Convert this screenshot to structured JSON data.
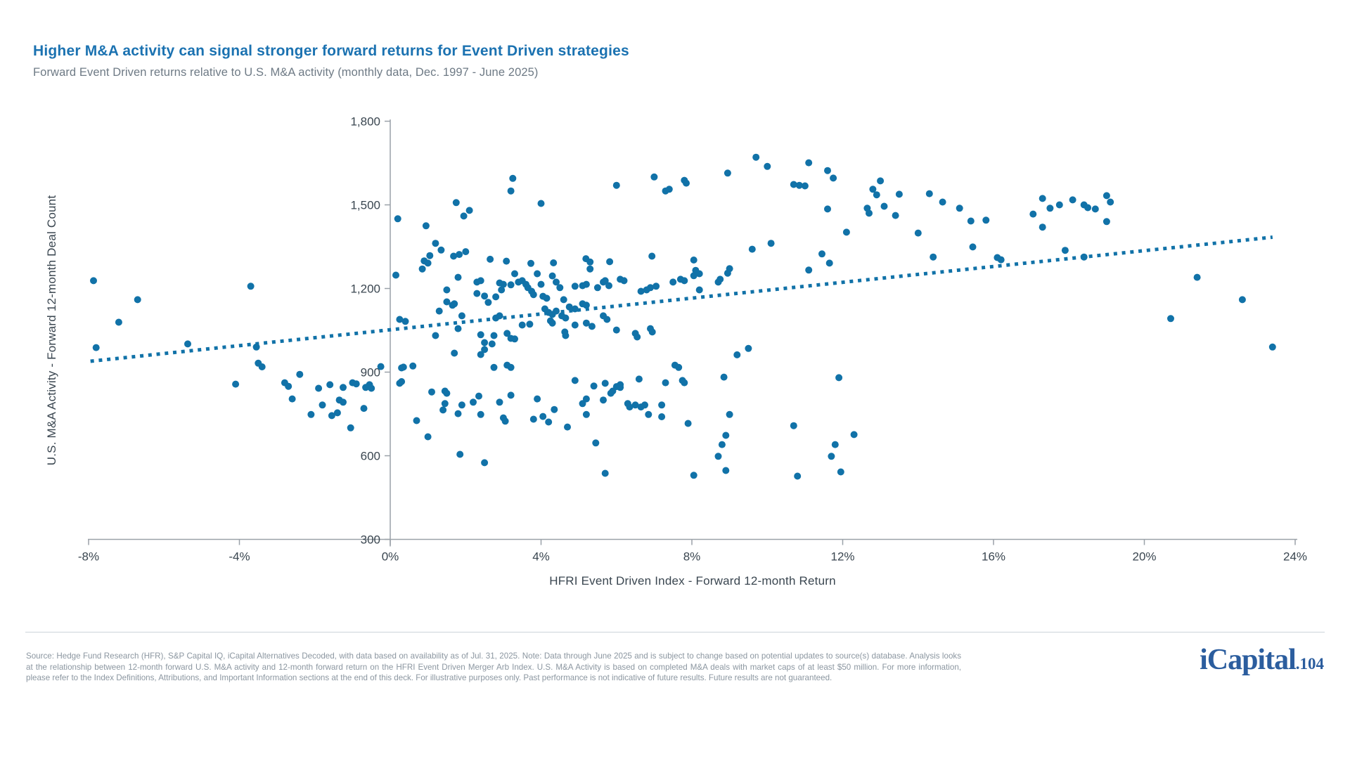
{
  "page": {
    "title": "Higher M&A activity can signal stronger forward returns for Event Driven strategies",
    "subtitle": "Forward Event Driven returns relative to U.S. M&A activity (monthly data, Dec. 1997 - June 2025)"
  },
  "chart": {
    "colors": {
      "point": "#1172a8",
      "trend": "#1172a8",
      "axis_line": "#9aa1a8",
      "tick_text": "#3a4650"
    }
  },
  "chart_data": {
    "type": "scatter",
    "title": "Forward Event Driven returns relative to U.S. M&A activity (monthly data, Dec. 1997 - June 2025)",
    "xlabel": "HFRI Event Driven Index - Forward 12-month Return",
    "ylabel": "U.S. M&A Activity - Forward 12-month Deal Count",
    "xlim": [
      -8,
      24
    ],
    "ylim": [
      300,
      1800
    ],
    "x_ticks": [
      -8,
      -4,
      0,
      4,
      8,
      12,
      16,
      20,
      24
    ],
    "y_ticks": [
      300,
      600,
      900,
      1200,
      1500,
      1800
    ],
    "x_tick_suffix": "%",
    "grid": false,
    "legend": null,
    "trendline": {
      "style": "dotted",
      "x1": -7.95,
      "y1": 939,
      "x2": 23.4,
      "y2": 1384
    },
    "points": [
      [
        -7.87,
        1228
      ],
      [
        -7.8,
        988
      ],
      [
        -7.2,
        1079
      ],
      [
        -6.7,
        1160
      ],
      [
        -5.37,
        1001
      ],
      [
        -4.1,
        857
      ],
      [
        -3.7,
        1208
      ],
      [
        -3.55,
        990
      ],
      [
        -3.5,
        932
      ],
      [
        -3.4,
        919
      ],
      [
        -2.8,
        862
      ],
      [
        -2.7,
        849
      ],
      [
        -2.6,
        804
      ],
      [
        -2.4,
        892
      ],
      [
        -2.1,
        748
      ],
      [
        -1.9,
        842
      ],
      [
        -1.8,
        782
      ],
      [
        -1.6,
        855
      ],
      [
        -1.55,
        744
      ],
      [
        -1.4,
        754
      ],
      [
        -1.35,
        800
      ],
      [
        -1.25,
        845
      ],
      [
        -1.25,
        792
      ],
      [
        -1.05,
        700
      ],
      [
        -1.0,
        862
      ],
      [
        -0.9,
        858
      ],
      [
        -0.7,
        770
      ],
      [
        -0.65,
        845
      ],
      [
        -0.55,
        855
      ],
      [
        -0.5,
        842
      ],
      [
        -0.25,
        920
      ],
      [
        0.15,
        1248
      ],
      [
        0.2,
        1450
      ],
      [
        0.25,
        1089
      ],
      [
        0.25,
        860
      ],
      [
        0.3,
        915
      ],
      [
        0.3,
        866
      ],
      [
        0.35,
        918
      ],
      [
        0.4,
        1082
      ],
      [
        0.6,
        922
      ],
      [
        0.7,
        726
      ],
      [
        0.85,
        1270
      ],
      [
        0.9,
        1299
      ],
      [
        0.95,
        1425
      ],
      [
        1.0,
        1291
      ],
      [
        1.0,
        668
      ],
      [
        1.05,
        1318
      ],
      [
        1.1,
        829
      ],
      [
        1.2,
        1031
      ],
      [
        1.2,
        1362
      ],
      [
        1.3,
        1119
      ],
      [
        1.35,
        1338
      ],
      [
        1.4,
        764
      ],
      [
        1.45,
        832
      ],
      [
        1.45,
        787
      ],
      [
        1.5,
        1195
      ],
      [
        1.5,
        1152
      ],
      [
        1.5,
        824
      ],
      [
        1.65,
        1140
      ],
      [
        1.68,
        1316
      ],
      [
        1.7,
        1145
      ],
      [
        1.7,
        968
      ],
      [
        1.75,
        1508
      ],
      [
        1.8,
        1240
      ],
      [
        1.8,
        1056
      ],
      [
        1.8,
        751
      ],
      [
        1.83,
        1322
      ],
      [
        1.85,
        605
      ],
      [
        1.9,
        1102
      ],
      [
        1.9,
        782
      ],
      [
        1.95,
        1460
      ],
      [
        2.0,
        1332
      ],
      [
        2.1,
        1480
      ],
      [
        2.2,
        792
      ],
      [
        2.3,
        1223
      ],
      [
        2.3,
        1182
      ],
      [
        2.35,
        814
      ],
      [
        2.4,
        1228
      ],
      [
        2.4,
        963
      ],
      [
        2.4,
        1034
      ],
      [
        2.4,
        748
      ],
      [
        2.5,
        1173
      ],
      [
        2.5,
        981
      ],
      [
        2.5,
        1006
      ],
      [
        2.5,
        575
      ],
      [
        2.6,
        1150
      ],
      [
        2.65,
        1305
      ],
      [
        2.7,
        1001
      ],
      [
        2.75,
        1031
      ],
      [
        2.75,
        917
      ],
      [
        2.8,
        1170
      ],
      [
        2.8,
        1094
      ],
      [
        2.9,
        1220
      ],
      [
        2.9,
        1102
      ],
      [
        2.9,
        792
      ],
      [
        2.95,
        1195
      ],
      [
        3.0,
        1215
      ],
      [
        3.0,
        736
      ],
      [
        3.05,
        724
      ],
      [
        3.08,
        1298
      ],
      [
        3.1,
        1039
      ],
      [
        3.1,
        925
      ],
      [
        3.2,
        1213
      ],
      [
        3.2,
        1021
      ],
      [
        3.2,
        917
      ],
      [
        3.2,
        817
      ],
      [
        3.2,
        1550
      ],
      [
        3.25,
        1595
      ],
      [
        3.3,
        1253
      ],
      [
        3.3,
        1019
      ],
      [
        3.4,
        1223
      ],
      [
        3.5,
        1228
      ],
      [
        3.5,
        1069
      ],
      [
        3.6,
        1215
      ],
      [
        3.65,
        1203
      ],
      [
        3.7,
        1072
      ],
      [
        3.73,
        1290
      ],
      [
        3.75,
        1190
      ],
      [
        3.8,
        1178
      ],
      [
        3.8,
        731
      ],
      [
        3.9,
        1253
      ],
      [
        3.9,
        804
      ],
      [
        4.0,
        1505
      ],
      [
        4.0,
        1215
      ],
      [
        4.05,
        741
      ],
      [
        4.05,
        1172
      ],
      [
        4.1,
        1127
      ],
      [
        4.15,
        1165
      ],
      [
        4.2,
        1114
      ],
      [
        4.2,
        721
      ],
      [
        4.25,
        1084
      ],
      [
        4.3,
        1245
      ],
      [
        4.3,
        1107
      ],
      [
        4.3,
        1076
      ],
      [
        4.33,
        1292
      ],
      [
        4.35,
        766
      ],
      [
        4.4,
        1223
      ],
      [
        4.4,
        1119
      ],
      [
        4.5,
        1203
      ],
      [
        4.55,
        1102
      ],
      [
        4.6,
        1160
      ],
      [
        4.63,
        1044
      ],
      [
        4.65,
        1094
      ],
      [
        4.65,
        1031
      ],
      [
        4.7,
        703
      ],
      [
        4.75,
        1134
      ],
      [
        4.9,
        1208
      ],
      [
        4.9,
        1127
      ],
      [
        4.9,
        1069
      ],
      [
        4.9,
        870
      ],
      [
        5.1,
        1210
      ],
      [
        5.1,
        1145
      ],
      [
        5.1,
        787
      ],
      [
        5.19,
        1307
      ],
      [
        5.2,
        1215
      ],
      [
        5.2,
        1140
      ],
      [
        5.2,
        1076
      ],
      [
        5.2,
        804
      ],
      [
        5.2,
        748
      ],
      [
        5.3,
        1270
      ],
      [
        5.3,
        1295
      ],
      [
        5.35,
        1064
      ],
      [
        5.4,
        850
      ],
      [
        5.45,
        646
      ],
      [
        5.5,
        1203
      ],
      [
        5.65,
        1223
      ],
      [
        5.65,
        1102
      ],
      [
        5.65,
        800
      ],
      [
        5.7,
        1228
      ],
      [
        5.7,
        860
      ],
      [
        5.7,
        537
      ],
      [
        5.75,
        1089
      ],
      [
        5.8,
        1210
      ],
      [
        5.82,
        1296
      ],
      [
        5.85,
        824
      ],
      [
        5.9,
        832
      ],
      [
        6.0,
        1570
      ],
      [
        6.0,
        1051
      ],
      [
        6.0,
        848
      ],
      [
        6.1,
        1233
      ],
      [
        6.1,
        855
      ],
      [
        6.1,
        845
      ],
      [
        6.2,
        1228
      ],
      [
        6.3,
        787
      ],
      [
        6.35,
        775
      ],
      [
        6.5,
        1039
      ],
      [
        6.5,
        782
      ],
      [
        6.55,
        1026
      ],
      [
        6.6,
        875
      ],
      [
        6.65,
        775
      ],
      [
        6.65,
        1190
      ],
      [
        6.75,
        782
      ],
      [
        6.8,
        1195
      ],
      [
        6.85,
        748
      ],
      [
        6.9,
        1203
      ],
      [
        6.9,
        1056
      ],
      [
        6.94,
        1316
      ],
      [
        6.95,
        1044
      ],
      [
        7.0,
        1600
      ],
      [
        7.05,
        1208
      ],
      [
        7.2,
        782
      ],
      [
        7.2,
        740
      ],
      [
        7.3,
        1550
      ],
      [
        7.3,
        862
      ],
      [
        7.4,
        1556
      ],
      [
        7.5,
        1223
      ],
      [
        7.55,
        925
      ],
      [
        7.65,
        917
      ],
      [
        7.7,
        1233
      ],
      [
        7.75,
        870
      ],
      [
        7.8,
        1588
      ],
      [
        7.8,
        1228
      ],
      [
        7.8,
        862
      ],
      [
        7.85,
        1578
      ],
      [
        7.9,
        716
      ],
      [
        8.05,
        1246
      ],
      [
        8.05,
        530
      ],
      [
        8.05,
        1302
      ],
      [
        8.1,
        1265
      ],
      [
        8.2,
        1253
      ],
      [
        8.2,
        1195
      ],
      [
        8.7,
        1223
      ],
      [
        8.7,
        598
      ],
      [
        8.75,
        1233
      ],
      [
        8.8,
        640
      ],
      [
        8.85,
        882
      ],
      [
        8.9,
        673
      ],
      [
        8.9,
        547
      ],
      [
        8.95,
        1614
      ],
      [
        8.95,
        1255
      ],
      [
        9.0,
        1271
      ],
      [
        9.0,
        748
      ],
      [
        9.2,
        962
      ],
      [
        9.5,
        985
      ],
      [
        9.6,
        1341
      ],
      [
        9.7,
        1671
      ],
      [
        10.0,
        1638
      ],
      [
        10.1,
        1362
      ],
      [
        10.7,
        1573
      ],
      [
        10.7,
        708
      ],
      [
        10.8,
        527
      ],
      [
        10.85,
        1570
      ],
      [
        11.0,
        1568
      ],
      [
        11.1,
        1651
      ],
      [
        11.1,
        1266
      ],
      [
        11.45,
        1324
      ],
      [
        11.6,
        1623
      ],
      [
        11.6,
        1485
      ],
      [
        11.65,
        1291
      ],
      [
        11.7,
        598
      ],
      [
        11.75,
        1596
      ],
      [
        11.8,
        640
      ],
      [
        11.9,
        880
      ],
      [
        11.95,
        542
      ],
      [
        12.1,
        1402
      ],
      [
        12.3,
        676
      ],
      [
        12.65,
        1488
      ],
      [
        12.7,
        1470
      ],
      [
        12.8,
        1556
      ],
      [
        12.9,
        1536
      ],
      [
        13.0,
        1586
      ],
      [
        13.1,
        1495
      ],
      [
        13.4,
        1462
      ],
      [
        13.5,
        1538
      ],
      [
        14.0,
        1399
      ],
      [
        14.3,
        1540
      ],
      [
        14.4,
        1313
      ],
      [
        14.65,
        1510
      ],
      [
        15.1,
        1488
      ],
      [
        15.4,
        1442
      ],
      [
        15.45,
        1349
      ],
      [
        15.8,
        1445
      ],
      [
        16.1,
        1311
      ],
      [
        16.2,
        1303
      ],
      [
        17.05,
        1467
      ],
      [
        17.3,
        1523
      ],
      [
        17.3,
        1420
      ],
      [
        17.5,
        1488
      ],
      [
        17.75,
        1500
      ],
      [
        17.9,
        1337
      ],
      [
        18.1,
        1518
      ],
      [
        18.4,
        1500
      ],
      [
        18.4,
        1313
      ],
      [
        18.5,
        1490
      ],
      [
        18.7,
        1485
      ],
      [
        19.0,
        1533
      ],
      [
        19.0,
        1440
      ],
      [
        19.1,
        1510
      ],
      [
        20.7,
        1092
      ],
      [
        21.4,
        1240
      ],
      [
        22.6,
        1160
      ],
      [
        23.4,
        990
      ]
    ]
  },
  "footer": {
    "source_text": "Source: Hedge Fund Research (HFR), S&P Capital IQ, iCapital Alternatives Decoded, with data based on availability as of Jul. 31, 2025. Note: Data through June 2025 and is subject to change based on potential updates to source(s) database. Analysis looks at the relationship between 12-month forward U.S. M&A activity and 12-month forward return on the HFRI Event Driven Merger Arb Index. U.S. M&A Activity is based on completed M&A deals with market caps of at least $50 million. For more information, please refer to the Index Definitions, Attributions, and Important Information sections at the end of this deck. For illustrative purposes only. Past performance is not indicative of future results. Future results are not guaranteed.",
    "logo_text": "iCapital",
    "page_label": ".104"
  }
}
